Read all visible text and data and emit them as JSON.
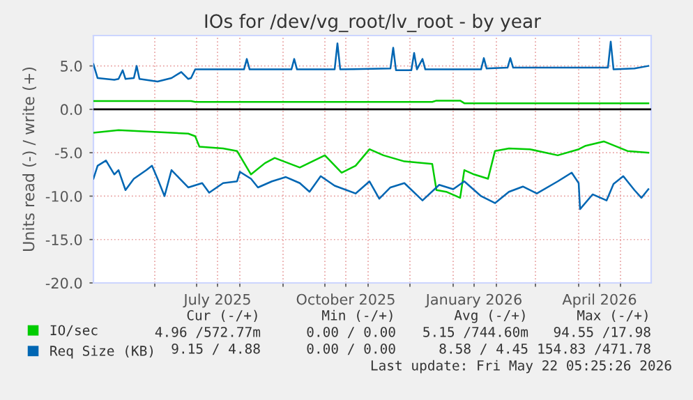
{
  "chart_data": {
    "type": "line",
    "title": "IOs for /dev/vg_root/lv_root - by year",
    "ylabel": "Units read (-) / write (+)",
    "xlim": [
      "2025-04-18",
      "2026-05-23"
    ],
    "xticks": [
      {
        "value": "2025-06-01",
        "label": null
      },
      {
        "value": "2025-07-01",
        "label": null
      },
      {
        "value": "2025-07-16",
        "label": "July 2025"
      },
      {
        "value": "2025-08-01",
        "label": null
      },
      {
        "value": "2025-09-01",
        "label": null
      },
      {
        "value": "2025-10-01",
        "label": null
      },
      {
        "value": "2025-10-16",
        "label": "October 2025"
      },
      {
        "value": "2025-11-01",
        "label": null
      },
      {
        "value": "2025-12-01",
        "label": null
      },
      {
        "value": "2026-01-01",
        "label": null
      },
      {
        "value": "2026-01-16",
        "label": "January 2026"
      },
      {
        "value": "2026-02-01",
        "label": null
      },
      {
        "value": "2026-03-01",
        "label": null
      },
      {
        "value": "2026-04-01",
        "label": null
      },
      {
        "value": "2026-04-16",
        "label": "April 2026"
      },
      {
        "value": "2026-05-01",
        "label": null
      }
    ],
    "ylim": [
      -20,
      8.5
    ],
    "yticks": [
      {
        "value": -20,
        "label": "-20.0"
      },
      {
        "value": -15,
        "label": "-15.0"
      },
      {
        "value": -10,
        "label": "-10.0"
      },
      {
        "value": -5,
        "label": "-5.0"
      },
      {
        "value": 0,
        "label": "0.0"
      },
      {
        "value": 5,
        "label": "5.0"
      }
    ],
    "grid": true,
    "legend": "bottom left",
    "line_style": "solid",
    "marker": "none",
    "ref_lines": [
      {
        "axis": "y",
        "value": 0,
        "color": "#000000"
      }
    ],
    "series": [
      {
        "name": "IO/sec",
        "color": "#00cc00",
        "x": [
          "2025-04-18",
          "2025-06-27",
          "2025-06-30",
          "2025-12-17",
          "2025-12-20",
          "2026-01-06",
          "2026-01-09",
          "2026-05-21"
        ],
        "values": [
          0.95,
          0.95,
          0.85,
          0.85,
          1.0,
          1.0,
          0.7,
          0.7
        ]
      },
      {
        "color": "#00cc00",
        "x": [
          "2025-04-18",
          "2025-05-06",
          "2025-06-13",
          "2025-06-25",
          "2025-06-30",
          "2025-07-03",
          "2025-07-20",
          "2025-07-30",
          "2025-08-09",
          "2025-08-19",
          "2025-08-26",
          "2025-09-13",
          "2025-10-01",
          "2025-10-13",
          "2025-10-23",
          "2025-11-02",
          "2025-11-12",
          "2025-11-27",
          "2025-12-17",
          "2025-12-20",
          "2025-12-27",
          "2026-01-06",
          "2026-01-09",
          "2026-01-16",
          "2026-01-26",
          "2026-01-31",
          "2026-02-10",
          "2026-02-25",
          "2026-03-17",
          "2026-04-01",
          "2026-04-06",
          "2026-04-19",
          "2026-05-06",
          "2026-05-21"
        ],
        "values": [
          -2.7,
          -2.4,
          -2.7,
          -2.8,
          -3.1,
          -4.3,
          -4.5,
          -4.8,
          -7.5,
          -6.2,
          -5.6,
          -6.7,
          -5.3,
          -7.3,
          -6.5,
          -4.6,
          -5.3,
          -6.0,
          -6.3,
          -9.3,
          -9.5,
          -10.2,
          -7.0,
          -7.5,
          -8.0,
          -4.8,
          -4.5,
          -4.6,
          -5.3,
          -4.6,
          -4.2,
          -3.7,
          -4.8,
          -5.0
        ]
      },
      {
        "name": "Req Size (KB)",
        "color": "#0066b3",
        "x": [
          "2025-04-18",
          "2025-04-21",
          "2025-05-03",
          "2025-05-06",
          "2025-05-09",
          "2025-05-11",
          "2025-05-17",
          "2025-05-19",
          "2025-05-21",
          "2025-06-03",
          "2025-06-13",
          "2025-06-20",
          "2025-06-25",
          "2025-06-27",
          "2025-06-30",
          "2025-08-04",
          "2025-08-06",
          "2025-08-08",
          "2025-09-07",
          "2025-09-09",
          "2025-09-11",
          "2025-10-08",
          "2025-10-10",
          "2025-10-12",
          "2025-11-17",
          "2025-11-19",
          "2025-11-21",
          "2025-12-02",
          "2025-12-04",
          "2025-12-06",
          "2025-12-10",
          "2025-12-12",
          "2026-01-21",
          "2026-01-23",
          "2026-01-25",
          "2026-02-09",
          "2026-02-11",
          "2026-02-13",
          "2026-04-22",
          "2026-04-24",
          "2026-04-26",
          "2026-05-11",
          "2026-05-21"
        ],
        "values": [
          5.2,
          3.6,
          3.4,
          3.5,
          4.5,
          3.5,
          3.6,
          5.0,
          3.5,
          3.2,
          3.6,
          4.3,
          3.5,
          3.6,
          4.6,
          4.6,
          5.8,
          4.6,
          4.6,
          5.8,
          4.6,
          4.6,
          7.6,
          4.6,
          4.7,
          7.1,
          4.5,
          4.5,
          6.5,
          4.6,
          5.8,
          4.6,
          4.6,
          5.9,
          4.7,
          4.8,
          5.9,
          4.8,
          4.8,
          7.8,
          4.6,
          4.7,
          5.0
        ]
      },
      {
        "color": "#0066b3",
        "x": [
          "2025-04-18",
          "2025-04-21",
          "2025-04-27",
          "2025-05-03",
          "2025-05-06",
          "2025-05-11",
          "2025-05-17",
          "2025-05-26",
          "2025-05-30",
          "2025-06-03",
          "2025-06-08",
          "2025-06-13",
          "2025-06-25",
          "2025-07-05",
          "2025-07-10",
          "2025-07-20",
          "2025-07-30",
          "2025-08-01",
          "2025-08-09",
          "2025-08-14",
          "2025-08-24",
          "2025-09-03",
          "2025-09-13",
          "2025-09-20",
          "2025-09-28",
          "2025-10-08",
          "2025-10-23",
          "2025-11-02",
          "2025-11-09",
          "2025-11-17",
          "2025-11-27",
          "2025-12-10",
          "2025-12-22",
          "2026-01-01",
          "2026-01-09",
          "2026-01-21",
          "2026-01-31",
          "2026-02-10",
          "2026-02-20",
          "2026-03-02",
          "2026-03-17",
          "2026-03-27",
          "2026-04-01",
          "2026-04-02",
          "2026-04-11",
          "2026-04-21",
          "2026-04-26",
          "2026-05-03",
          "2026-05-11",
          "2026-05-16",
          "2026-05-21"
        ],
        "values": [
          -8.0,
          -6.5,
          -5.9,
          -7.5,
          -7.0,
          -9.3,
          -8.0,
          -7.0,
          -6.5,
          -8.0,
          -10.0,
          -7.0,
          -9.0,
          -8.5,
          -9.6,
          -8.5,
          -8.3,
          -7.2,
          -8.0,
          -9.0,
          -8.3,
          -7.8,
          -8.5,
          -9.5,
          -7.7,
          -8.8,
          -9.7,
          -8.3,
          -10.3,
          -9.0,
          -8.5,
          -10.5,
          -8.7,
          -9.2,
          -8.3,
          -10.0,
          -10.8,
          -9.5,
          -8.9,
          -9.7,
          -8.3,
          -7.3,
          -8.5,
          -11.5,
          -9.8,
          -10.5,
          -8.6,
          -7.7,
          -9.3,
          -10.2,
          -9.2
        ]
      }
    ],
    "annotations": [
      "Cur (-/+)",
      "Min (-/+)",
      "Avg (-/+)",
      "Max (-/+)",
      "4.96 /572.77m",
      "0.00 / 0.00",
      "5.15 /744.60m",
      "94.55 /17.98",
      "9.15 / 4.88",
      "0.00 / 0.00",
      "8.58 / 4.45",
      "154.83 /471.78",
      "Last update: Fri May 22 05:25:26 2026"
    ]
  }
}
